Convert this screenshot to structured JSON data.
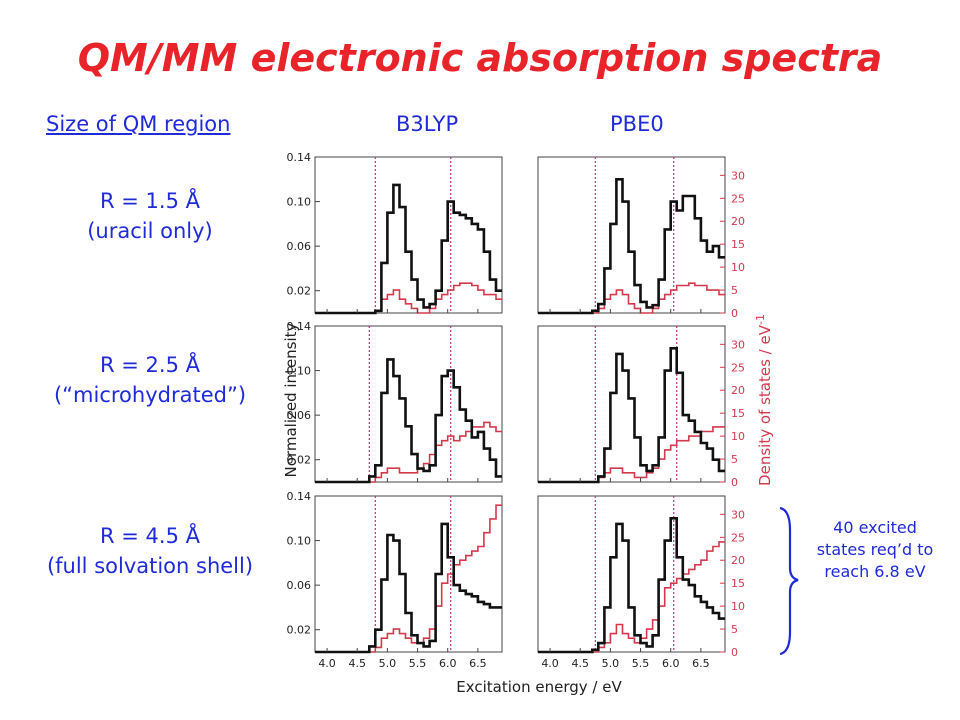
{
  "title": "QM/MM electronic absorption spectra",
  "headers": {
    "size": "Size of QM region",
    "b3lyp": "B3LYP",
    "pbe0": "PBE0"
  },
  "rows": [
    {
      "r": "R = 1.5 Å",
      "desc": "(uracil only)"
    },
    {
      "r": "R = 2.5 Å",
      "desc": "(“microhydrated”)"
    },
    {
      "r": "R = 4.5 Å",
      "desc": "(full solvation shell)"
    }
  ],
  "note": "40 excited states req’d to reach 6.8 eV",
  "colors": {
    "title": "#e8242a",
    "text": "#1f2ad8",
    "dos": "#d23a4c",
    "spectrum": "#111111",
    "brace": "#1f2ad8"
  },
  "chart_data": {
    "type": "line",
    "grid": false,
    "xlabel": "Excitation energy / eV",
    "ylabel_left": "Normalized intensity",
    "ylabel_right": "Density of states / eV",
    "ylabel_right_sup": "-1",
    "xlim": [
      3.8,
      6.9
    ],
    "ylim_left": [
      0,
      0.14
    ],
    "ylim_right": [
      0,
      34
    ],
    "x_ticks": [
      "4.0",
      "4.5",
      "5.0",
      "5.5",
      "6.0",
      "6.5"
    ],
    "y_ticks_left": [
      "0.02",
      "0.06",
      "0.10",
      "0.14"
    ],
    "y_ticks_right": [
      "0",
      "5",
      "10",
      "15",
      "20",
      "25",
      "30"
    ],
    "bins": [
      3.8,
      3.9,
      4.0,
      4.1,
      4.2,
      4.3,
      4.4,
      4.5,
      4.6,
      4.7,
      4.8,
      4.9,
      5.0,
      5.1,
      5.2,
      5.3,
      5.4,
      5.5,
      5.6,
      5.7,
      5.8,
      5.9,
      6.0,
      6.1,
      6.2,
      6.3,
      6.4,
      6.5,
      6.6,
      6.7,
      6.8,
      6.9
    ],
    "panels": [
      {
        "name": "R=1.5 B3LYP",
        "vlines": [
          4.8,
          6.05
        ],
        "intensity": [
          0,
          0,
          0,
          0,
          0,
          0,
          0,
          0,
          0,
          0,
          0.002,
          0.045,
          0.09,
          0.115,
          0.095,
          0.055,
          0.03,
          0.012,
          0.005,
          0.008,
          0.02,
          0.065,
          0.1,
          0.09,
          0.088,
          0.085,
          0.08,
          0.075,
          0.055,
          0.03,
          0.02
        ],
        "dos": [
          0,
          0,
          0,
          0,
          0,
          0,
          0,
          0,
          0,
          0,
          0.5,
          3,
          4,
          5,
          3,
          2,
          1,
          0,
          0,
          1,
          3,
          4,
          5,
          6,
          6.5,
          6.5,
          6,
          5,
          4,
          4,
          3
        ]
      },
      {
        "name": "R=1.5 PBE0",
        "vlines": [
          4.75,
          6.05
        ],
        "intensity": [
          0,
          0,
          0,
          0,
          0,
          0,
          0,
          0,
          0,
          0.002,
          0.008,
          0.04,
          0.08,
          0.12,
          0.1,
          0.055,
          0.025,
          0.01,
          0.005,
          0.007,
          0.03,
          0.075,
          0.1,
          0.092,
          0.105,
          0.105,
          0.085,
          0.065,
          0.055,
          0.06,
          0.05
        ],
        "dos": [
          0,
          0,
          0,
          0,
          0,
          0,
          0,
          0,
          0,
          0,
          1,
          3,
          4,
          5,
          4,
          2,
          1,
          0,
          0,
          1,
          3,
          4,
          5,
          6,
          6,
          6.5,
          6,
          6,
          5,
          5,
          4
        ]
      },
      {
        "name": "R=2.5 B3LYP",
        "vlines": [
          4.7,
          6.05
        ],
        "intensity": [
          0,
          0,
          0,
          0,
          0,
          0,
          0,
          0,
          0,
          0.005,
          0.015,
          0.08,
          0.11,
          0.095,
          0.075,
          0.05,
          0.025,
          0.012,
          0.01,
          0.015,
          0.06,
          0.095,
          0.1,
          0.085,
          0.065,
          0.055,
          0.04,
          0.045,
          0.03,
          0.02,
          0.005
        ],
        "dos": [
          0,
          0,
          0,
          0,
          0,
          0,
          0,
          0,
          0,
          0,
          1,
          2,
          3,
          3,
          2,
          2,
          2,
          3,
          4,
          6,
          8,
          9,
          10,
          9,
          10,
          11,
          12,
          12,
          13,
          12,
          11
        ]
      },
      {
        "name": "R=2.5 PBE0",
        "vlines": [
          4.75,
          6.1
        ],
        "intensity": [
          0,
          0,
          0,
          0,
          0,
          0,
          0,
          0,
          0,
          0,
          0.005,
          0.03,
          0.08,
          0.115,
          0.1,
          0.075,
          0.04,
          0.015,
          0.01,
          0.015,
          0.04,
          0.1,
          0.12,
          0.098,
          0.06,
          0.055,
          0.045,
          0.035,
          0.03,
          0.02,
          0.01
        ],
        "dos": [
          0,
          0,
          0,
          0,
          0,
          0,
          0,
          0,
          0,
          0,
          1,
          2,
          3,
          3,
          2,
          2,
          1,
          1,
          2,
          3,
          5,
          7,
          8,
          9,
          9,
          10,
          10,
          11,
          11,
          12,
          12
        ]
      },
      {
        "name": "R=4.5 B3LYP",
        "vlines": [
          4.8,
          6.05
        ],
        "intensity": [
          0,
          0,
          0,
          0,
          0,
          0,
          0,
          0,
          0,
          0.005,
          0.02,
          0.065,
          0.105,
          0.1,
          0.07,
          0.035,
          0.015,
          0.008,
          0.005,
          0.01,
          0.07,
          0.115,
          0.085,
          0.06,
          0.055,
          0.052,
          0.05,
          0.045,
          0.043,
          0.04,
          0.04
        ],
        "dos": [
          0,
          0,
          0,
          0,
          0,
          0,
          0,
          0,
          0,
          0,
          1,
          3,
          4,
          5,
          4,
          3,
          2,
          2,
          3,
          5,
          10,
          15,
          17,
          19,
          20,
          21,
          22,
          23,
          26,
          29,
          32
        ]
      },
      {
        "name": "R=4.5 PBE0",
        "vlines": [
          4.75,
          6.05
        ],
        "intensity": [
          0,
          0,
          0,
          0,
          0,
          0,
          0,
          0,
          0,
          0.002,
          0.008,
          0.04,
          0.085,
          0.115,
          0.1,
          0.04,
          0.015,
          0.008,
          0.005,
          0.015,
          0.065,
          0.1,
          0.12,
          0.085,
          0.065,
          0.06,
          0.05,
          0.045,
          0.04,
          0.035,
          0.03
        ],
        "dos": [
          0,
          0,
          0,
          0,
          0,
          0,
          0,
          0,
          0,
          0,
          1,
          2,
          4,
          6,
          4,
          3,
          2,
          3,
          5,
          7,
          10,
          14,
          15,
          16,
          17,
          18,
          19,
          20,
          22,
          23,
          24
        ]
      }
    ]
  }
}
